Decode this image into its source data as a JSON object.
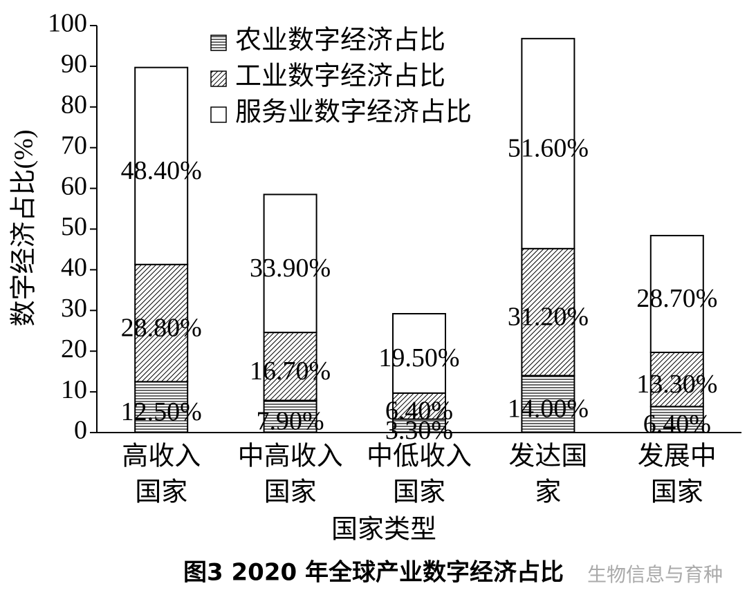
{
  "chart_data": {
    "type": "stacked_bar",
    "title": "图3   2020 年全球产业数字经济占比",
    "watermark": "生物信息与育种",
    "x_label": "国家类型",
    "y_label": "数字经济占比(%)",
    "categories": [
      [
        "高收入",
        "国家"
      ],
      [
        "中高收入",
        "国家"
      ],
      [
        "中低收入",
        "国家"
      ],
      [
        "发达国",
        "家"
      ],
      [
        "发展中",
        "国家"
      ]
    ],
    "series": [
      {
        "name": "农业数字经济占比",
        "pattern": "horizontal",
        "color": "#000000",
        "values": [
          12.5,
          7.9,
          3.3,
          14.0,
          6.4
        ],
        "value_labels": [
          "12.50%",
          "7.90%",
          "3.30%",
          "14.00%",
          "6.40%"
        ]
      },
      {
        "name": "工业数字经济占比",
        "pattern": "diagonal",
        "color": "#000000",
        "values": [
          28.8,
          16.7,
          6.4,
          31.2,
          13.3
        ],
        "value_labels": [
          "28.80%",
          "16.70%",
          "6.40%",
          "31.20%",
          "13.30%"
        ]
      },
      {
        "name": "服务业数字经济占比",
        "pattern": "none",
        "color": "#000000",
        "values": [
          48.4,
          33.9,
          19.5,
          51.6,
          28.7
        ],
        "value_labels": [
          "48.40%",
          "33.90%",
          "19.50%",
          "51.60%",
          "28.70%"
        ]
      }
    ],
    "ylim": [
      0,
      100
    ],
    "yticks": [
      0,
      10,
      20,
      30,
      40,
      50,
      60,
      70,
      80,
      90,
      100
    ],
    "grid": false,
    "legend": "top-left"
  }
}
